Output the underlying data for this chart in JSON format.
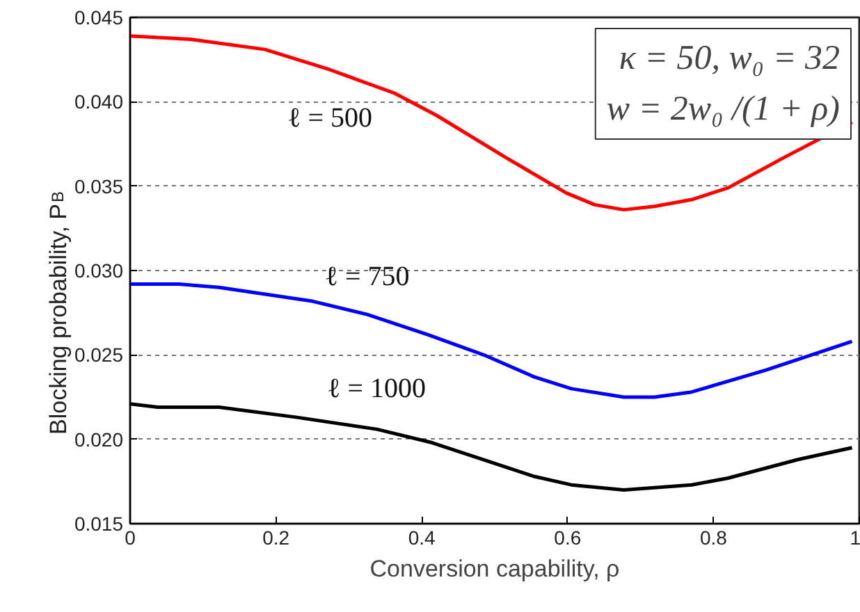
{
  "chart_data": {
    "type": "line",
    "xlabel": "Conversion capability, ρ",
    "ylabel": "Blocking probability, P$_{B}$",
    "annotations": [
      "κ = 50, w₀ = 32",
      "w = 2w₀ /(1 + ρ)"
    ],
    "xlim": [
      0,
      1
    ],
    "ylim": [
      0.015,
      0.045
    ],
    "xticks": [
      0,
      0.2,
      0.4,
      0.6,
      0.8,
      1
    ],
    "yticks": [
      0.015,
      {
        "value": 0.02,
        "label": "0.020"
      },
      0.025,
      {
        "value": 0.03,
        "label": "0.030"
      },
      0.035,
      {
        "value": 0.04,
        "label": "0.040"
      },
      0.045
    ],
    "grid": "y",
    "marker": "none",
    "line_style": "solid",
    "series": [
      {
        "name": "ℓ = 500",
        "color": "#ff0000",
        "x": [
          0,
          0.083,
          0.185,
          0.274,
          0.363,
          0.42,
          0.515,
          0.598,
          0.637,
          0.677,
          0.719,
          0.77,
          0.82,
          0.897,
          0.99
        ],
        "values": [
          0.0439,
          0.0437,
          0.0431,
          0.0419,
          0.0405,
          0.0392,
          0.0367,
          0.0346,
          0.0339,
          0.0336,
          0.0338,
          0.0342,
          0.0349,
          0.0367,
          0.0388
        ]
      },
      {
        "name": "ℓ = 750",
        "color": "#0000ff",
        "x": [
          0,
          0.067,
          0.122,
          0.185,
          0.248,
          0.325,
          0.408,
          0.485,
          0.554,
          0.605,
          0.677,
          0.719,
          0.77,
          0.872,
          0.99
        ],
        "values": [
          0.0292,
          0.0292,
          0.029,
          0.0286,
          0.0282,
          0.0274,
          0.0262,
          0.025,
          0.0237,
          0.023,
          0.0225,
          0.0225,
          0.0228,
          0.0241,
          0.0258
        ]
      },
      {
        "name": "ℓ = 1000",
        "color": "#000000",
        "x": [
          0,
          0.038,
          0.084,
          0.122,
          0.229,
          0.338,
          0.414,
          0.477,
          0.554,
          0.605,
          0.677,
          0.77,
          0.82,
          0.916,
          0.99
        ],
        "values": [
          0.0221,
          0.0219,
          0.0219,
          0.0219,
          0.0213,
          0.0206,
          0.0198,
          0.0189,
          0.0178,
          0.0173,
          0.017,
          0.0173,
          0.0177,
          0.0188,
          0.0195
        ]
      }
    ]
  }
}
